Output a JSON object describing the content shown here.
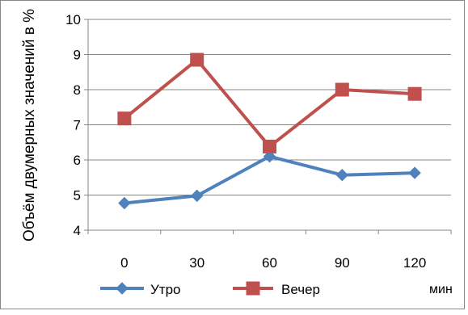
{
  "chart_data": {
    "type": "line",
    "categories": [
      "0",
      "30",
      "60",
      "90",
      "120"
    ],
    "series": [
      {
        "name": "Утро",
        "values": [
          4.77,
          4.98,
          6.1,
          5.57,
          5.63
        ],
        "color": "#4F81BD",
        "marker": "diamond"
      },
      {
        "name": "Вечер",
        "values": [
          7.18,
          8.85,
          6.38,
          8.0,
          7.88
        ],
        "color": "#C0504D",
        "marker": "square"
      }
    ],
    "ylabel": "Объём двумерных значений в %",
    "xlabel": "мин",
    "ylim": [
      4,
      10
    ],
    "yticks": [
      "4",
      "5",
      "6",
      "7",
      "8",
      "9",
      "10"
    ],
    "grid": true,
    "legend": "bottom"
  }
}
